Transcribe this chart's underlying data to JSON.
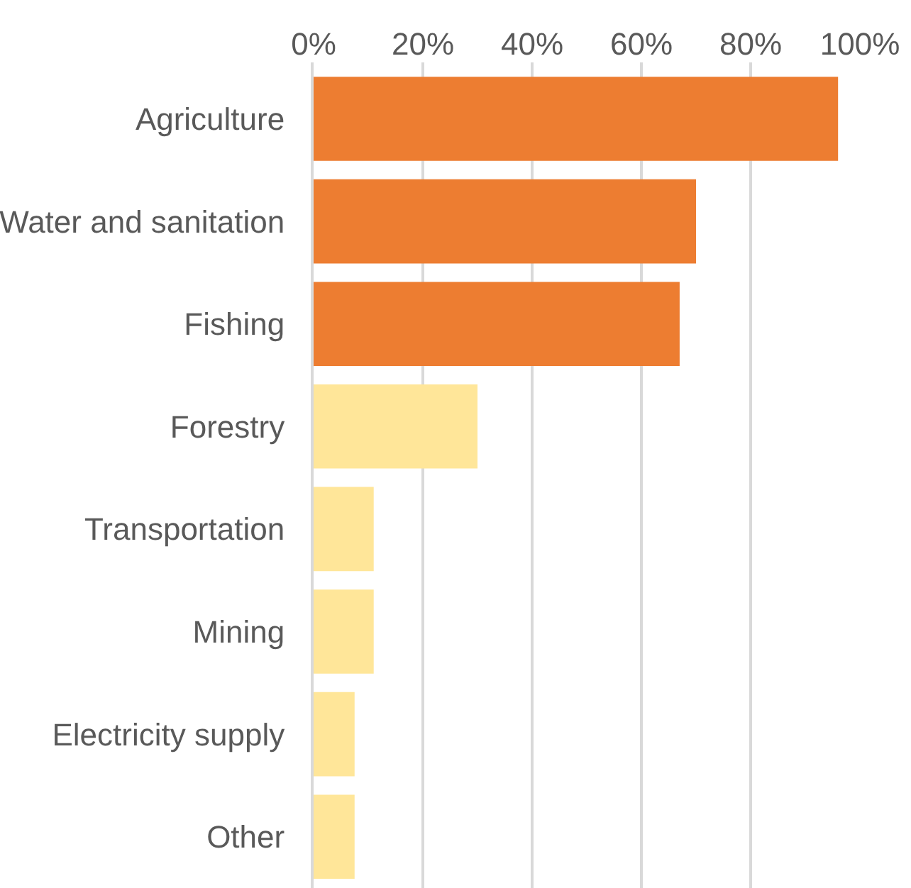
{
  "chart_data": {
    "type": "bar",
    "orientation": "horizontal",
    "categories": [
      "Agriculture",
      "Water and sanitation",
      "Fishing",
      "Forestry",
      "Transportation",
      "Mining",
      "Electricity supply",
      "Other"
    ],
    "values": [
      96,
      70,
      67,
      30,
      11,
      11,
      7.5,
      7.5
    ],
    "colors": [
      "#ed7d31",
      "#ed7d31",
      "#ed7d31",
      "#ffe699",
      "#ffe699",
      "#ffe699",
      "#ffe699",
      "#ffe699"
    ],
    "xlim": [
      0,
      100
    ],
    "xticks": [
      {
        "value": 0,
        "label": "0%"
      },
      {
        "value": 20,
        "label": "20%"
      },
      {
        "value": 40,
        "label": "40%"
      },
      {
        "value": 60,
        "label": "60%"
      },
      {
        "value": 80,
        "label": "80%"
      },
      {
        "value": 100,
        "label": "100%"
      }
    ],
    "grid": "x"
  }
}
